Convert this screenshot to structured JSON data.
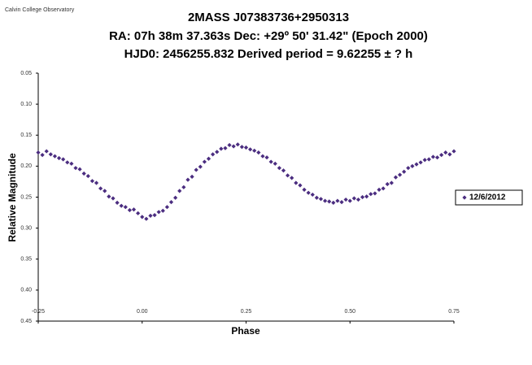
{
  "chart_data": {
    "type": "scatter",
    "source": "Calvin College Observatory",
    "title_lines": [
      "2MASS  J07383736+2950313",
      "RA: 07h 38m 37.363s    Dec: +29º 50' 31.42\"  (Epoch 2000)",
      "HJD0: 2456255.832      Derived period =  9.62255 ±  ? h"
    ],
    "x_label": "Phase",
    "y_label": "Relative Magnitude",
    "xlim": [
      -0.25,
      0.75
    ],
    "xticks": [
      {
        "value": -0.25,
        "label": "-0.25"
      },
      {
        "value": 0,
        "label": "0.00"
      },
      0.25,
      {
        "value": 0.5,
        "label": "0.50"
      },
      0.75
    ],
    "ylim": [
      0.45,
      0.05
    ],
    "yticks": [
      0.05,
      {
        "value": 0.1,
        "label": "0.10"
      },
      0.15,
      {
        "value": 0.2,
        "label": "0.20"
      },
      0.25,
      {
        "value": 0.3,
        "label": "0.30"
      },
      0.35,
      {
        "value": 0.4,
        "label": "0.40"
      },
      0.45
    ],
    "grid": false,
    "legend": "right",
    "series": [
      {
        "name": "12/6/2012",
        "color": "#4b2d80",
        "x": [
          -0.25,
          -0.24,
          -0.23,
          -0.22,
          -0.21,
          -0.2,
          -0.19,
          -0.18,
          -0.17,
          -0.16,
          -0.15,
          -0.14,
          -0.13,
          -0.12,
          -0.11,
          -0.1,
          -0.09,
          -0.08,
          -0.07,
          -0.06,
          -0.05,
          -0.04,
          -0.03,
          -0.02,
          -0.01,
          0,
          0.01,
          0.02,
          0.03,
          0.04,
          0.05,
          0.06,
          0.07,
          0.08,
          0.09,
          0.1,
          0.11,
          0.12,
          0.13,
          0.14,
          0.15,
          0.16,
          0.17,
          0.18,
          0.19,
          0.2,
          0.21,
          0.22,
          0.23,
          0.24,
          0.25,
          0.26,
          0.27,
          0.28,
          0.29,
          0.3,
          0.31,
          0.32,
          0.33,
          0.34,
          0.35,
          0.36,
          0.37,
          0.38,
          0.39,
          0.4,
          0.41,
          0.42,
          0.43,
          0.44,
          0.45,
          0.46,
          0.47,
          0.48,
          0.49,
          0.5,
          0.51,
          0.52,
          0.53,
          0.54,
          0.55,
          0.56,
          0.57,
          0.58,
          0.59,
          0.6,
          0.61,
          0.62,
          0.63,
          0.64,
          0.65,
          0.66,
          0.67,
          0.68,
          0.69,
          0.7,
          0.71,
          0.72,
          0.73,
          0.74,
          0.75
        ],
        "values": [
          0.178,
          0.182,
          0.176,
          0.181,
          0.184,
          0.187,
          0.189,
          0.194,
          0.196,
          0.203,
          0.205,
          0.212,
          0.216,
          0.224,
          0.227,
          0.236,
          0.24,
          0.249,
          0.252,
          0.259,
          0.264,
          0.266,
          0.271,
          0.27,
          0.276,
          0.282,
          0.285,
          0.28,
          0.279,
          0.274,
          0.272,
          0.266,
          0.258,
          0.251,
          0.24,
          0.234,
          0.222,
          0.217,
          0.206,
          0.201,
          0.193,
          0.188,
          0.181,
          0.177,
          0.172,
          0.171,
          0.166,
          0.168,
          0.165,
          0.169,
          0.17,
          0.173,
          0.175,
          0.178,
          0.184,
          0.186,
          0.193,
          0.196,
          0.203,
          0.207,
          0.215,
          0.219,
          0.227,
          0.231,
          0.238,
          0.243,
          0.246,
          0.251,
          0.253,
          0.256,
          0.257,
          0.259,
          0.256,
          0.258,
          0.254,
          0.256,
          0.252,
          0.254,
          0.25,
          0.249,
          0.245,
          0.244,
          0.238,
          0.236,
          0.229,
          0.227,
          0.218,
          0.214,
          0.209,
          0.203,
          0.2,
          0.197,
          0.194,
          0.19,
          0.189,
          0.185,
          0.186,
          0.182,
          0.178,
          0.181,
          0.176
        ]
      }
    ]
  }
}
